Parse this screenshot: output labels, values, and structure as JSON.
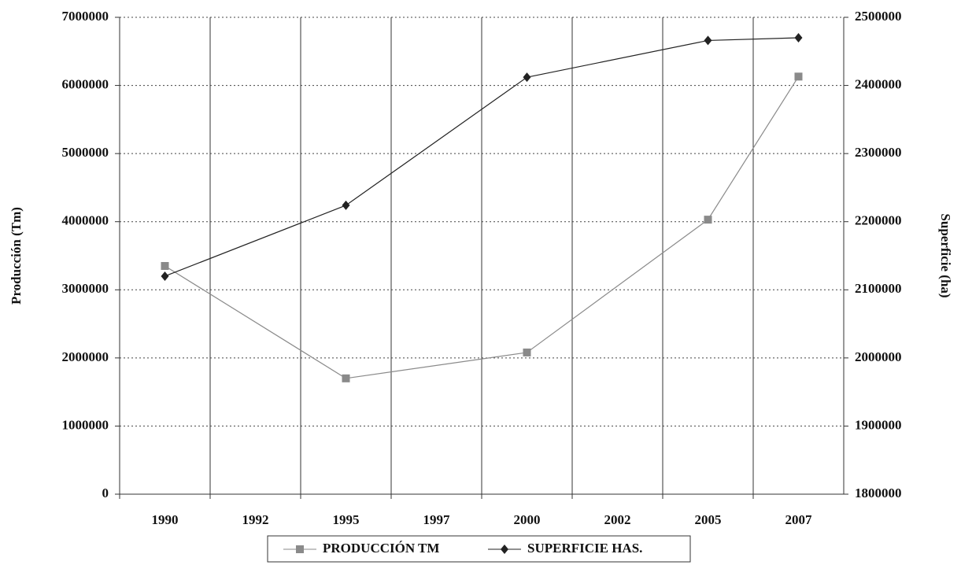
{
  "chart_data": {
    "type": "line",
    "categories": [
      "1990",
      "1992",
      "1995",
      "1997",
      "2000",
      "2002",
      "2005",
      "2007"
    ],
    "series": [
      {
        "name": "PRODUCCIÓN TM",
        "color": "#8a8a8a",
        "marker": "square",
        "axis": "y",
        "values": [
          3350000,
          null,
          1700000,
          null,
          2080000,
          null,
          4030000,
          6130000
        ]
      },
      {
        "name": "SUPERFICIE HAS.",
        "color": "#222222",
        "marker": "diamond",
        "axis": "y2",
        "values": [
          2120000,
          null,
          2224000,
          null,
          2412000,
          null,
          2466000,
          2470000
        ]
      }
    ],
    "ylabel": "Producción  (Tm)",
    "y2label": "Superficie  (ha)",
    "ylim": [
      0,
      7000000
    ],
    "yticks": [
      0,
      1000000,
      2000000,
      3000000,
      4000000,
      5000000,
      6000000,
      7000000
    ],
    "y2lim": [
      1800000,
      2500000
    ],
    "y2ticks": [
      1800000,
      1900000,
      2000000,
      2100000,
      2200000,
      2300000,
      2400000,
      2500000
    ],
    "grid": true,
    "legend": "bottom"
  }
}
